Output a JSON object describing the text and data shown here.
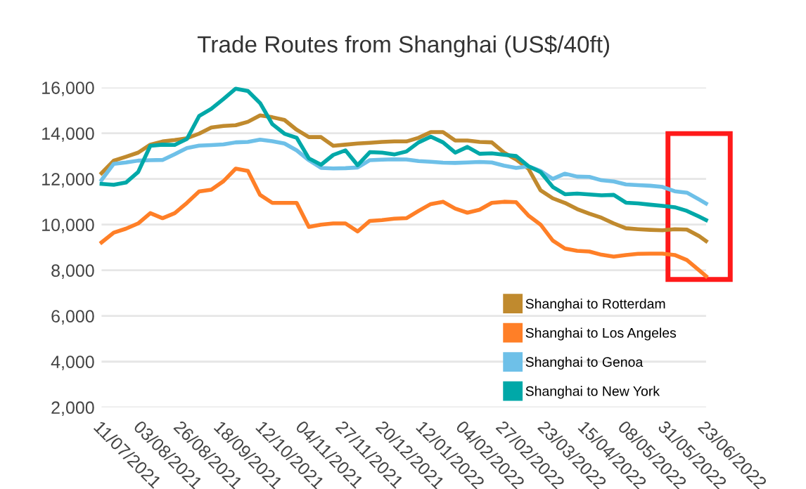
{
  "chart_data": {
    "type": "line",
    "title": "Trade Routes from Shanghai (US$/40ft)",
    "x": [
      "2021-07-11",
      "2021-07-18",
      "2021-07-25",
      "2021-08-01",
      "2021-08-08",
      "2021-08-15",
      "2021-08-22",
      "2021-08-29",
      "2021-09-05",
      "2021-09-12",
      "2021-09-19",
      "2021-09-26",
      "2021-10-03",
      "2021-10-10",
      "2021-10-17",
      "2021-10-24",
      "2021-10-31",
      "2021-11-07",
      "2021-11-14",
      "2021-11-21",
      "2021-11-28",
      "2021-12-05",
      "2021-12-12",
      "2021-12-19",
      "2021-12-26",
      "2022-01-02",
      "2022-01-09",
      "2022-01-16",
      "2022-01-23",
      "2022-01-30",
      "2022-02-06",
      "2022-02-13",
      "2022-02-20",
      "2022-02-27",
      "2022-03-06",
      "2022-03-13",
      "2022-03-20",
      "2022-03-27",
      "2022-04-03",
      "2022-04-10",
      "2022-04-17",
      "2022-04-24",
      "2022-05-01",
      "2022-05-08",
      "2022-05-15",
      "2022-05-22",
      "2022-05-29",
      "2022-06-05",
      "2022-06-12",
      "2022-06-19",
      "2022-06-23"
    ],
    "series": [
      {
        "name": "Shanghai to Rotterdam",
        "color": "#c08a2e",
        "values": [
          12250,
          12800,
          12970,
          13150,
          13500,
          13640,
          13700,
          13780,
          13980,
          14250,
          14320,
          14350,
          14500,
          14780,
          14700,
          14580,
          14150,
          13830,
          13830,
          13450,
          13500,
          13550,
          13580,
          13620,
          13640,
          13640,
          13800,
          14050,
          14050,
          13680,
          13680,
          13620,
          13600,
          13150,
          12850,
          12450,
          11500,
          11150,
          10950,
          10680,
          10480,
          10300,
          10050,
          9840,
          9800,
          9770,
          9750,
          9800,
          9780,
          9500,
          9280
        ]
      },
      {
        "name": "Shanghai to Los Angeles",
        "color": "#ff7f27",
        "values": [
          9220,
          9650,
          9820,
          10050,
          10500,
          10280,
          10500,
          10950,
          11450,
          11530,
          11900,
          12450,
          12350,
          11300,
          10950,
          10950,
          10950,
          9900,
          10000,
          10050,
          10050,
          9700,
          10160,
          10200,
          10260,
          10280,
          10600,
          10900,
          11000,
          10700,
          10520,
          10650,
          10950,
          11000,
          10980,
          10400,
          10000,
          9300,
          8950,
          8850,
          8820,
          8680,
          8600,
          8670,
          8720,
          8730,
          8730,
          8670,
          8450,
          8000,
          7740
        ]
      },
      {
        "name": "Shanghai to Genoa",
        "color": "#6ec0e8",
        "values": [
          11950,
          12660,
          12720,
          12800,
          12820,
          12830,
          13080,
          13350,
          13460,
          13480,
          13510,
          13600,
          13620,
          13720,
          13650,
          13550,
          13250,
          12820,
          12480,
          12460,
          12470,
          12500,
          12820,
          12840,
          12860,
          12850,
          12780,
          12750,
          12710,
          12700,
          12720,
          12740,
          12720,
          12580,
          12480,
          12550,
          12350,
          12000,
          12230,
          12100,
          12090,
          11940,
          11890,
          11760,
          11730,
          11700,
          11650,
          11460,
          11400,
          11100,
          10920
        ]
      },
      {
        "name": "Shanghai to New York",
        "color": "#00a8a8",
        "values": [
          11780,
          11740,
          11840,
          12300,
          13450,
          13500,
          13490,
          13750,
          14750,
          15070,
          15500,
          15950,
          15850,
          15320,
          14400,
          13980,
          13800,
          12900,
          12620,
          13050,
          13250,
          12600,
          13170,
          13150,
          13070,
          13200,
          13600,
          13850,
          13600,
          13150,
          13400,
          13100,
          13120,
          13060,
          13000,
          12560,
          12300,
          11650,
          11330,
          11360,
          11320,
          11280,
          11300,
          10960,
          10930,
          10870,
          10820,
          10760,
          10600,
          10350,
          10200
        ]
      }
    ],
    "xlim": [
      "2021-07-11",
      "2022-06-23"
    ],
    "xticks": [
      {
        "value": "2021-07-11",
        "label": "11/07/2021"
      },
      {
        "value": "2021-08-03",
        "label": "03/08/2021"
      },
      {
        "value": "2021-08-26",
        "label": "26/08/2021"
      },
      {
        "value": "2021-09-18",
        "label": "18/09/2021"
      },
      {
        "value": "2021-10-12",
        "label": "12/10/2021"
      },
      {
        "value": "2021-11-04",
        "label": "04/11/2021"
      },
      {
        "value": "2021-11-27",
        "label": "27/11/2021"
      },
      {
        "value": "2021-12-20",
        "label": "20/12/2021"
      },
      {
        "value": "2022-01-12",
        "label": "12/01/2022"
      },
      {
        "value": "2022-02-04",
        "label": "04/02/2022"
      },
      {
        "value": "2022-02-27",
        "label": "27/02/2022"
      },
      {
        "value": "2022-03-23",
        "label": "23/03/2022"
      },
      {
        "value": "2022-04-15",
        "label": "15/04/2022"
      },
      {
        "value": "2022-05-08",
        "label": "08/05/2022"
      },
      {
        "value": "2022-05-31",
        "label": "31/05/2022"
      },
      {
        "value": "2022-06-23",
        "label": "23/06/2022"
      }
    ],
    "ylim": [
      2000,
      16000
    ],
    "yticks": [
      {
        "value": 2000,
        "label": "2,000"
      },
      {
        "value": 4000,
        "label": "4,000"
      },
      {
        "value": 6000,
        "label": "6,000"
      },
      {
        "value": 8000,
        "label": "8,000"
      },
      {
        "value": 10000,
        "label": "10,000"
      },
      {
        "value": 12000,
        "label": "12,000"
      },
      {
        "value": 14000,
        "label": "14,000"
      },
      {
        "value": 16000,
        "label": "16,000"
      }
    ],
    "grid": "y",
    "legend": "bottom right",
    "marker": "none",
    "line_style": "solid"
  }
}
